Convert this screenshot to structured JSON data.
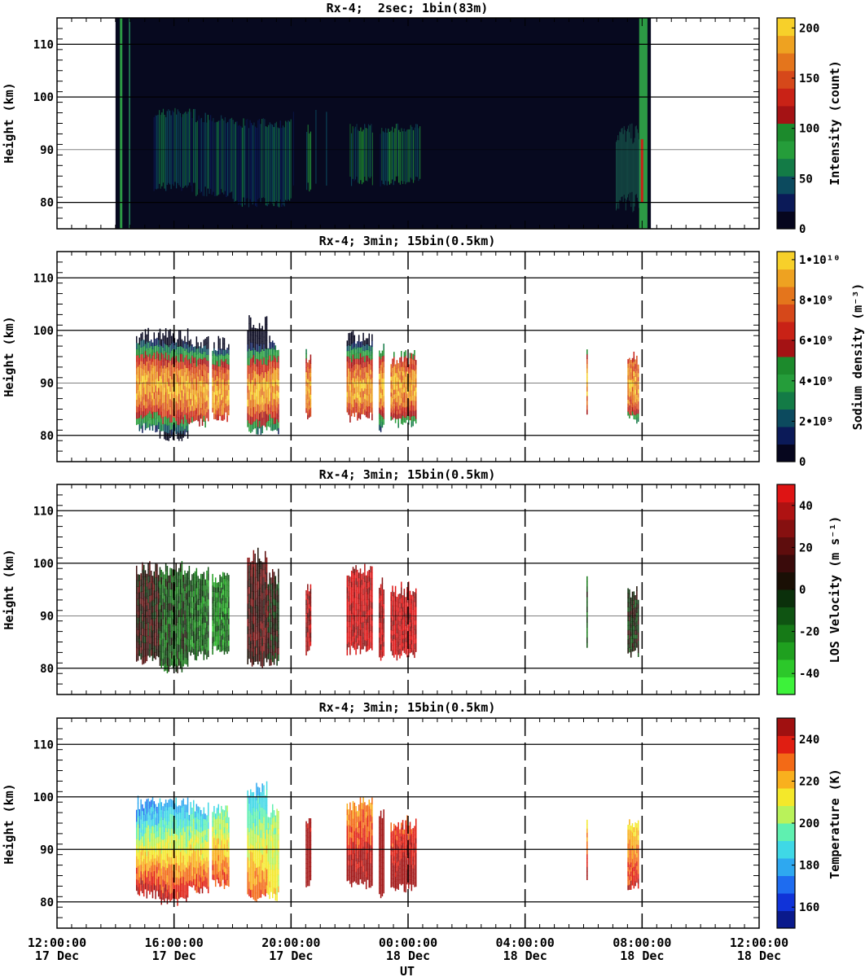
{
  "chart_data": [
    {
      "type": "heatmap",
      "title": "Rx-4;  2sec; 1bin(83m)",
      "ylabel": "Height (km)",
      "ylim": [
        75,
        115
      ],
      "yticks": [
        80,
        90,
        100,
        110
      ],
      "colorbar": {
        "label": "Intensity (count)",
        "min": 0,
        "max": 210,
        "tick_values": [
          0,
          50,
          100,
          150,
          200
        ],
        "tick_labels": [
          "0",
          "50",
          "100",
          "150",
          "200"
        ],
        "colors": [
          "#06061e",
          "#0b1a58",
          "#0c4a5e",
          "#137b46",
          "#259d3a",
          "#1c8a2c",
          "#a41214",
          "#c92216",
          "#d6481a",
          "#e4751c",
          "#eea221",
          "#f7d02a"
        ]
      },
      "data_window_hours": [
        14.0,
        32.3
      ],
      "regions": [
        {
          "x0": 15.3,
          "x1": 16.7,
          "y0": 84,
          "y1": 98,
          "level": 0.45
        },
        {
          "x0": 16.7,
          "x1": 18.0,
          "y0": 83,
          "y1": 97,
          "level": 0.4
        },
        {
          "x0": 18.0,
          "x1": 20.0,
          "y0": 81,
          "y1": 96,
          "level": 0.42
        },
        {
          "x0": 20.5,
          "x1": 20.7,
          "y0": 84,
          "y1": 95,
          "level": 0.65
        },
        {
          "x0": 22.0,
          "x1": 22.8,
          "y0": 85,
          "y1": 95,
          "level": 0.6
        },
        {
          "x0": 23.0,
          "x1": 24.4,
          "y0": 85,
          "y1": 95,
          "level": 0.55
        },
        {
          "x0": 31.9,
          "x1": 32.1,
          "y0": 75,
          "y1": 115,
          "level": 0.55
        }
      ]
    },
    {
      "type": "heatmap",
      "title": "Rx-4; 3min; 15bin(0.5km)",
      "ylabel": "Height (km)",
      "ylim": [
        75,
        115
      ],
      "yticks": [
        80,
        90,
        100,
        110
      ],
      "colorbar": {
        "label": "Sodium density (m⁻³)",
        "min": 0,
        "max": 10400000000,
        "tick_values": [
          0,
          2000000000,
          4000000000,
          6000000000,
          8000000000,
          10000000000
        ],
        "tick_labels": [
          "0",
          "2•10⁹",
          "4•10⁹",
          "6•10⁹",
          "8•10⁹",
          "1•10¹⁰"
        ],
        "colors": [
          "#06061e",
          "#0b1a58",
          "#0c4a5e",
          "#137b46",
          "#259d3a",
          "#1c8a2c",
          "#a41214",
          "#c92216",
          "#d6481a",
          "#e4751c",
          "#eea221",
          "#f7d02a"
        ]
      },
      "profiles": [
        {
          "x0": 14.7,
          "x1": 15.5,
          "y0": 80.5,
          "y1": 100.5,
          "center": 89.5
        },
        {
          "x0": 15.5,
          "x1": 16.5,
          "y0": 79.0,
          "y1": 100.5,
          "center": 89.0
        },
        {
          "x0": 16.5,
          "x1": 17.2,
          "y0": 81.5,
          "y1": 99.5,
          "center": 88.5
        },
        {
          "x0": 17.3,
          "x1": 17.9,
          "y0": 82.5,
          "y1": 99.0,
          "center": 88.0
        },
        {
          "x0": 18.5,
          "x1": 19.2,
          "y0": 80.0,
          "y1": 103.0,
          "center": 88.5
        },
        {
          "x0": 19.2,
          "x1": 19.6,
          "y0": 80.0,
          "y1": 99.0,
          "center": 89.0
        },
        {
          "x0": 20.5,
          "x1": 20.7,
          "y0": 82.5,
          "y1": 96.5,
          "center": 89.0
        },
        {
          "x0": 21.9,
          "x1": 22.8,
          "y0": 82.5,
          "y1": 100.0,
          "center": 89.0
        },
        {
          "x0": 23.0,
          "x1": 23.2,
          "y0": 80.5,
          "y1": 98.0,
          "center": 89.5
        },
        {
          "x0": 23.4,
          "x1": 24.3,
          "y0": 81.5,
          "y1": 96.5,
          "center": 89.5
        },
        {
          "x0": 30.1,
          "x1": 30.15,
          "y0": 82.5,
          "y1": 98.0,
          "center": 90.0
        },
        {
          "x0": 31.5,
          "x1": 31.9,
          "y0": 82.0,
          "y1": 96.0,
          "center": 90.0
        }
      ]
    },
    {
      "type": "heatmap",
      "title": "Rx-4; 3min; 15bin(0.5km)",
      "ylabel": "Height (km)",
      "ylim": [
        75,
        115
      ],
      "yticks": [
        80,
        90,
        100,
        110
      ],
      "colorbar": {
        "label": "LOS Velocity (m s⁻¹)",
        "min": -50,
        "max": 50,
        "tick_values": [
          -40,
          -20,
          0,
          20,
          40
        ],
        "tick_labels": [
          "-40",
          "-20",
          "0",
          "20",
          "40"
        ],
        "colors": [
          "#3df23a",
          "#2cc82a",
          "#1fa01f",
          "#167a17",
          "#0f5412",
          "#0b300b",
          "#1a0f05",
          "#3a0b0b",
          "#5e0d0d",
          "#861010",
          "#ae1212",
          "#de1414"
        ]
      },
      "profiles": [
        {
          "x0": 14.7,
          "x1": 15.5,
          "y0": 80.5,
          "y1": 100.5,
          "value": 10
        },
        {
          "x0": 15.5,
          "x1": 16.5,
          "y0": 79.0,
          "y1": 100.5,
          "value": -10
        },
        {
          "x0": 16.5,
          "x1": 17.2,
          "y0": 81.5,
          "y1": 99.5,
          "value": -15
        },
        {
          "x0": 17.3,
          "x1": 17.9,
          "y0": 82.5,
          "y1": 99.0,
          "value": -20
        },
        {
          "x0": 18.5,
          "x1": 19.2,
          "y0": 80.0,
          "y1": 103.0,
          "value": 15
        },
        {
          "x0": 19.2,
          "x1": 19.6,
          "y0": 80.0,
          "y1": 99.0,
          "value": 5
        },
        {
          "x0": 20.5,
          "x1": 20.7,
          "y0": 82.5,
          "y1": 96.5,
          "value": 35
        },
        {
          "x0": 21.9,
          "x1": 22.8,
          "y0": 82.5,
          "y1": 100.0,
          "value": 40
        },
        {
          "x0": 23.0,
          "x1": 23.2,
          "y0": 80.5,
          "y1": 98.0,
          "value": 38
        },
        {
          "x0": 23.4,
          "x1": 24.3,
          "y0": 81.5,
          "y1": 96.5,
          "value": 42
        },
        {
          "x0": 30.1,
          "x1": 30.15,
          "y0": 82.5,
          "y1": 98.0,
          "value": -10
        },
        {
          "x0": 31.5,
          "x1": 31.9,
          "y0": 82.0,
          "y1": 96.0,
          "value": 0
        }
      ]
    },
    {
      "type": "heatmap",
      "title": "Rx-4; 3min; 15bin(0.5km)",
      "ylabel": "Height (km)",
      "ylim": [
        75,
        115
      ],
      "yticks": [
        80,
        90,
        100,
        110
      ],
      "colorbar": {
        "label": "Temperature (K)",
        "min": 150,
        "max": 250,
        "tick_values": [
          160,
          180,
          200,
          220,
          240
        ],
        "tick_labels": [
          "160",
          "180",
          "200",
          "220",
          "240"
        ],
        "colors": [
          "#0a1a8c",
          "#1033d8",
          "#1e6cf0",
          "#2ea8f0",
          "#3fd8e6",
          "#5ff0b0",
          "#b9f25a",
          "#f4e82a",
          "#f9b01e",
          "#f36a16",
          "#e01e12",
          "#a01010"
        ]
      },
      "profiles": [
        {
          "x0": 14.7,
          "x1": 15.5,
          "y0": 80.5,
          "y1": 100.5,
          "bottom": 245,
          "top": 175
        },
        {
          "x0": 15.5,
          "x1": 16.5,
          "y0": 79.0,
          "y1": 100.5,
          "bottom": 242,
          "top": 180
        },
        {
          "x0": 16.5,
          "x1": 17.2,
          "y0": 81.5,
          "y1": 99.5,
          "bottom": 238,
          "top": 185
        },
        {
          "x0": 17.3,
          "x1": 17.9,
          "y0": 82.5,
          "y1": 99.0,
          "bottom": 235,
          "top": 195
        },
        {
          "x0": 18.5,
          "x1": 19.2,
          "y0": 80.0,
          "y1": 103.0,
          "bottom": 230,
          "top": 185
        },
        {
          "x0": 19.2,
          "x1": 19.6,
          "y0": 80.0,
          "y1": 99.0,
          "bottom": 215,
          "top": 200
        },
        {
          "x0": 20.5,
          "x1": 20.7,
          "y0": 82.5,
          "y1": 96.5,
          "bottom": 250,
          "top": 245
        },
        {
          "x0": 21.9,
          "x1": 22.8,
          "y0": 82.5,
          "y1": 100.0,
          "bottom": 250,
          "top": 225
        },
        {
          "x0": 23.0,
          "x1": 23.2,
          "y0": 80.5,
          "y1": 98.0,
          "bottom": 250,
          "top": 248
        },
        {
          "x0": 23.4,
          "x1": 24.3,
          "y0": 81.5,
          "y1": 96.5,
          "bottom": 250,
          "top": 235
        },
        {
          "x0": 30.1,
          "x1": 30.15,
          "y0": 82.5,
          "y1": 98.0,
          "bottom": 248,
          "top": 215
        },
        {
          "x0": 31.5,
          "x1": 31.9,
          "y0": 82.0,
          "y1": 96.0,
          "bottom": 240,
          "top": 215
        }
      ]
    }
  ],
  "x_axis": {
    "xlabel": "UT",
    "range_hours": [
      12,
      36
    ],
    "tick_values": [
      12,
      16,
      20,
      24,
      28,
      32,
      36
    ],
    "tick_labels": [
      [
        "12:00:00",
        "17 Dec"
      ],
      [
        "16:00:00",
        "17 Dec"
      ],
      [
        "20:00:00",
        "17 Dec"
      ],
      [
        "00:00:00",
        "18 Dec"
      ],
      [
        "04:00:00",
        "18 Dec"
      ],
      [
        "08:00:00",
        "18 Dec"
      ],
      [
        "12:00:00",
        "18 Dec"
      ]
    ],
    "dashed_gridlines_at": [
      16,
      20,
      24,
      28,
      32
    ]
  }
}
